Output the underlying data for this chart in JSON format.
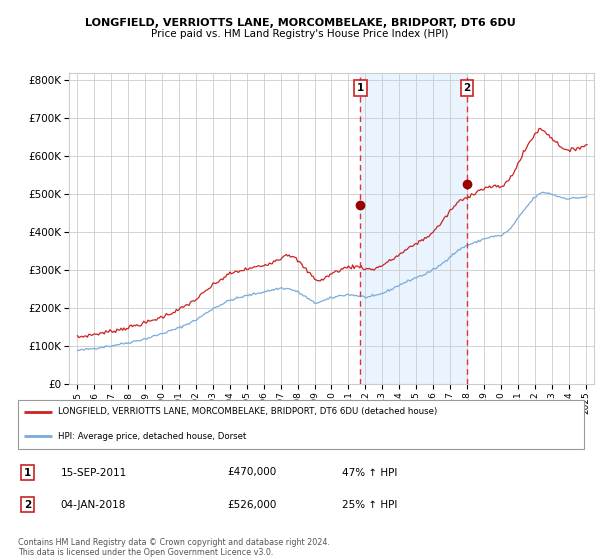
{
  "title1": "LONGFIELD, VERRIOTTS LANE, MORCOMBELAKE, BRIDPORT, DT6 6DU",
  "title2": "Price paid vs. HM Land Registry's House Price Index (HPI)",
  "background_color": "#ffffff",
  "plot_bg_color": "#ffffff",
  "grid_color": "#cccccc",
  "hpi_color": "#7aabdc",
  "price_color": "#cc2222",
  "marker_color": "#990000",
  "shade_color": "#ddeeff",
  "dashed_line_color": "#dd3333",
  "annotation_box_color": "#cc2222",
  "ylim": [
    0,
    820000
  ],
  "yticks": [
    0,
    100000,
    200000,
    300000,
    400000,
    500000,
    600000,
    700000,
    800000
  ],
  "ytick_labels": [
    "£0",
    "£100K",
    "£200K",
    "£300K",
    "£400K",
    "£500K",
    "£600K",
    "£700K",
    "£800K"
  ],
  "sale1_x": 2011.71,
  "sale1_y": 470000,
  "sale1_label": "1",
  "sale2_x": 2018.01,
  "sale2_y": 526000,
  "sale2_label": "2",
  "legend_line1": "LONGFIELD, VERRIOTTS LANE, MORCOMBELAKE, BRIDPORT, DT6 6DU (detached house)",
  "legend_line2": "HPI: Average price, detached house, Dorset",
  "table_row1": [
    "1",
    "15-SEP-2011",
    "£470,000",
    "47% ↑ HPI"
  ],
  "table_row2": [
    "2",
    "04-JAN-2018",
    "£526,000",
    "25% ↑ HPI"
  ],
  "footnote": "Contains HM Land Registry data © Crown copyright and database right 2024.\nThis data is licensed under the Open Government Licence v3.0.",
  "xlim": [
    1994.5,
    2025.5
  ],
  "xticks": [
    1995,
    1996,
    1997,
    1998,
    1999,
    2000,
    2001,
    2002,
    2003,
    2004,
    2005,
    2006,
    2007,
    2008,
    2009,
    2010,
    2011,
    2012,
    2013,
    2014,
    2015,
    2016,
    2017,
    2018,
    2019,
    2020,
    2021,
    2022,
    2023,
    2024,
    2025
  ]
}
